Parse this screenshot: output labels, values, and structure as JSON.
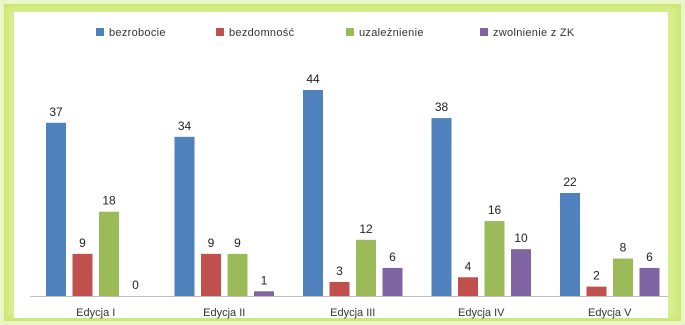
{
  "chart_data": {
    "type": "bar",
    "categories": [
      "Edycja I",
      "Edycja II",
      "Edycja III",
      "Edycja IV",
      "Edycja V"
    ],
    "series": [
      {
        "name": "bezrobocie",
        "color": "#4f81bd",
        "values": [
          37,
          34,
          44,
          38,
          22
        ]
      },
      {
        "name": "bezdomność",
        "color": "#c0504d",
        "values": [
          9,
          9,
          3,
          4,
          2
        ]
      },
      {
        "name": "uzależnienie",
        "color": "#9bbb59",
        "values": [
          18,
          9,
          12,
          16,
          8
        ]
      },
      {
        "name": "zwolnienie z ZK",
        "color": "#8064a2",
        "values": [
          0,
          1,
          6,
          10,
          6
        ]
      }
    ],
    "ylim": [
      0,
      46
    ],
    "grid": false,
    "legend": "top",
    "data_labels": true
  }
}
